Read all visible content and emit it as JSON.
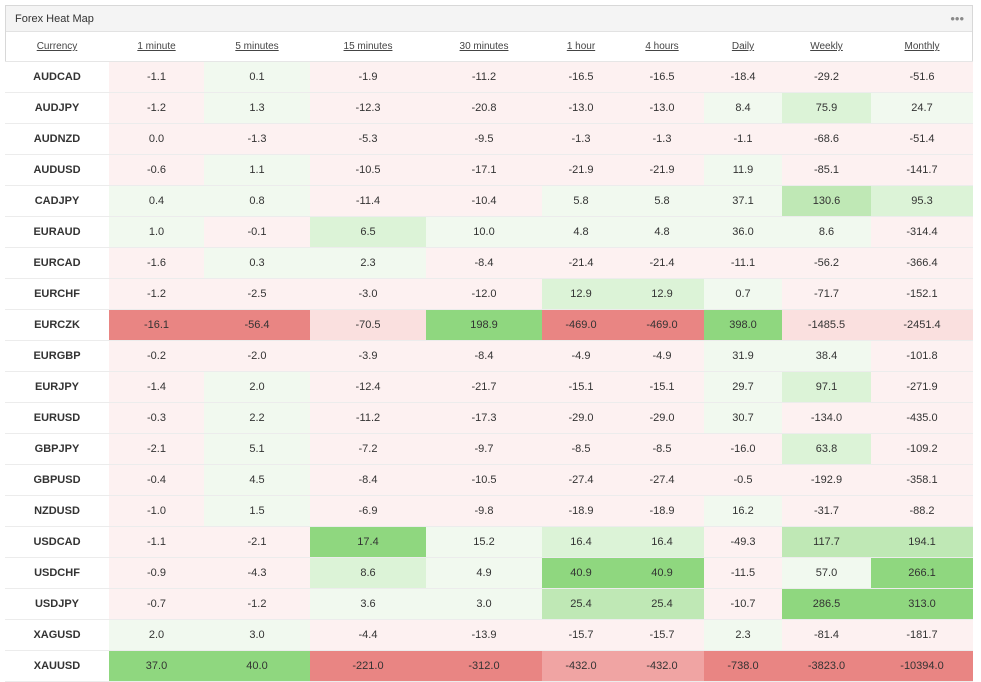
{
  "panel": {
    "title": "Forex Heat Map",
    "menu_icon": "more-dots-icon"
  },
  "colors": {
    "neg_strong": "#e98583",
    "neg_mid": "#f0a4a3",
    "neg_weak": "#fae0df",
    "neg_faint": "#fdf1f1",
    "pos_strong": "#8fd77f",
    "pos_mid": "#bfe8b5",
    "pos_weak": "#dcf3d7",
    "pos_faint": "#f1f9ef"
  },
  "columns": [
    "Currency",
    "1 minute",
    "5 minutes",
    "15 minutes",
    "30 minutes",
    "1 hour",
    "4 hours",
    "Daily",
    "Weekly",
    "Monthly"
  ],
  "rows": [
    {
      "pair": "AUDCAD",
      "values": [
        "-1.1",
        "0.1",
        "-1.9",
        "-11.2",
        "-16.5",
        "-16.5",
        "-18.4",
        "-29.2",
        "-51.6"
      ],
      "levels": [
        "n1",
        "p1",
        "n1",
        "n1",
        "n1",
        "n1",
        "n1",
        "n1",
        "n1"
      ]
    },
    {
      "pair": "AUDJPY",
      "values": [
        "-1.2",
        "1.3",
        "-12.3",
        "-20.8",
        "-13.0",
        "-13.0",
        "8.4",
        "75.9",
        "24.7"
      ],
      "levels": [
        "n1",
        "p1",
        "n1",
        "n1",
        "n1",
        "n1",
        "p1",
        "p2",
        "p1"
      ]
    },
    {
      "pair": "AUDNZD",
      "values": [
        "0.0",
        "-1.3",
        "-5.3",
        "-9.5",
        "-1.3",
        "-1.3",
        "-1.1",
        "-68.6",
        "-51.4"
      ],
      "levels": [
        "n1",
        "n1",
        "n1",
        "n1",
        "n1",
        "n1",
        "n1",
        "n1",
        "n1"
      ]
    },
    {
      "pair": "AUDUSD",
      "values": [
        "-0.6",
        "1.1",
        "-10.5",
        "-17.1",
        "-21.9",
        "-21.9",
        "11.9",
        "-85.1",
        "-141.7"
      ],
      "levels": [
        "n1",
        "p1",
        "n1",
        "n1",
        "n1",
        "n1",
        "p1",
        "n1",
        "n1"
      ]
    },
    {
      "pair": "CADJPY",
      "values": [
        "0.4",
        "0.8",
        "-11.4",
        "-10.4",
        "5.8",
        "5.8",
        "37.1",
        "130.6",
        "95.3"
      ],
      "levels": [
        "p1",
        "p1",
        "n1",
        "n1",
        "p1",
        "p1",
        "p1",
        "p3",
        "p2"
      ]
    },
    {
      "pair": "EURAUD",
      "values": [
        "1.0",
        "-0.1",
        "6.5",
        "10.0",
        "4.8",
        "4.8",
        "36.0",
        "8.6",
        "-314.4"
      ],
      "levels": [
        "p1",
        "n1",
        "p2",
        "p1",
        "p1",
        "p1",
        "p1",
        "p1",
        "n1"
      ]
    },
    {
      "pair": "EURCAD",
      "values": [
        "-1.6",
        "0.3",
        "2.3",
        "-8.4",
        "-21.4",
        "-21.4",
        "-11.1",
        "-56.2",
        "-366.4"
      ],
      "levels": [
        "n1",
        "p1",
        "p1",
        "n1",
        "n1",
        "n1",
        "n1",
        "n1",
        "n1"
      ]
    },
    {
      "pair": "EURCHF",
      "values": [
        "-1.2",
        "-2.5",
        "-3.0",
        "-12.0",
        "12.9",
        "12.9",
        "0.7",
        "-71.7",
        "-152.1"
      ],
      "levels": [
        "n1",
        "n1",
        "n1",
        "n1",
        "p2",
        "p2",
        "p1",
        "n1",
        "n1"
      ]
    },
    {
      "pair": "EURCZK",
      "values": [
        "-16.1",
        "-56.4",
        "-70.5",
        "198.9",
        "-469.0",
        "-469.0",
        "398.0",
        "-1485.5",
        "-2451.4"
      ],
      "levels": [
        "n4",
        "n4",
        "n2",
        "p4",
        "n4",
        "n4",
        "p4",
        "n2",
        "n2"
      ]
    },
    {
      "pair": "EURGBP",
      "values": [
        "-0.2",
        "-2.0",
        "-3.9",
        "-8.4",
        "-4.9",
        "-4.9",
        "31.9",
        "38.4",
        "-101.8"
      ],
      "levels": [
        "n1",
        "n1",
        "n1",
        "n1",
        "n1",
        "n1",
        "p1",
        "p1",
        "n1"
      ]
    },
    {
      "pair": "EURJPY",
      "values": [
        "-1.4",
        "2.0",
        "-12.4",
        "-21.7",
        "-15.1",
        "-15.1",
        "29.7",
        "97.1",
        "-271.9"
      ],
      "levels": [
        "n1",
        "p1",
        "n1",
        "n1",
        "n1",
        "n1",
        "p1",
        "p2",
        "n1"
      ]
    },
    {
      "pair": "EURUSD",
      "values": [
        "-0.3",
        "2.2",
        "-11.2",
        "-17.3",
        "-29.0",
        "-29.0",
        "30.7",
        "-134.0",
        "-435.0"
      ],
      "levels": [
        "n1",
        "p1",
        "n1",
        "n1",
        "n1",
        "n1",
        "p1",
        "n1",
        "n1"
      ]
    },
    {
      "pair": "GBPJPY",
      "values": [
        "-2.1",
        "5.1",
        "-7.2",
        "-9.7",
        "-8.5",
        "-8.5",
        "-16.0",
        "63.8",
        "-109.2"
      ],
      "levels": [
        "n1",
        "p1",
        "n1",
        "n1",
        "n1",
        "n1",
        "n1",
        "p2",
        "n1"
      ]
    },
    {
      "pair": "GBPUSD",
      "values": [
        "-0.4",
        "4.5",
        "-8.4",
        "-10.5",
        "-27.4",
        "-27.4",
        "-0.5",
        "-192.9",
        "-358.1"
      ],
      "levels": [
        "n1",
        "p1",
        "n1",
        "n1",
        "n1",
        "n1",
        "n1",
        "n1",
        "n1"
      ]
    },
    {
      "pair": "NZDUSD",
      "values": [
        "-1.0",
        "1.5",
        "-6.9",
        "-9.8",
        "-18.9",
        "-18.9",
        "16.2",
        "-31.7",
        "-88.2"
      ],
      "levels": [
        "n1",
        "p1",
        "n1",
        "n1",
        "n1",
        "n1",
        "p1",
        "n1",
        "n1"
      ]
    },
    {
      "pair": "USDCAD",
      "values": [
        "-1.1",
        "-2.1",
        "17.4",
        "15.2",
        "16.4",
        "16.4",
        "-49.3",
        "117.7",
        "194.1"
      ],
      "levels": [
        "n1",
        "n1",
        "p4",
        "p1",
        "p2",
        "p2",
        "n1",
        "p3",
        "p3"
      ]
    },
    {
      "pair": "USDCHF",
      "values": [
        "-0.9",
        "-4.3",
        "8.6",
        "4.9",
        "40.9",
        "40.9",
        "-11.5",
        "57.0",
        "266.1"
      ],
      "levels": [
        "n1",
        "n1",
        "p2",
        "p1",
        "p4",
        "p4",
        "n1",
        "p1",
        "p4"
      ]
    },
    {
      "pair": "USDJPY",
      "values": [
        "-0.7",
        "-1.2",
        "3.6",
        "3.0",
        "25.4",
        "25.4",
        "-10.7",
        "286.5",
        "313.0"
      ],
      "levels": [
        "n1",
        "n1",
        "p1",
        "p1",
        "p3",
        "p3",
        "n1",
        "p4",
        "p4"
      ]
    },
    {
      "pair": "XAGUSD",
      "values": [
        "2.0",
        "3.0",
        "-4.4",
        "-13.9",
        "-15.7",
        "-15.7",
        "2.3",
        "-81.4",
        "-181.7"
      ],
      "levels": [
        "p1",
        "p1",
        "n1",
        "n1",
        "n1",
        "n1",
        "p1",
        "n1",
        "n1"
      ]
    },
    {
      "pair": "XAUUSD",
      "values": [
        "37.0",
        "40.0",
        "-221.0",
        "-312.0",
        "-432.0",
        "-432.0",
        "-738.0",
        "-3823.0",
        "-10394.0"
      ],
      "levels": [
        "p4",
        "p4",
        "n4",
        "n4",
        "n3",
        "n3",
        "n4",
        "n4",
        "n4"
      ]
    }
  ]
}
